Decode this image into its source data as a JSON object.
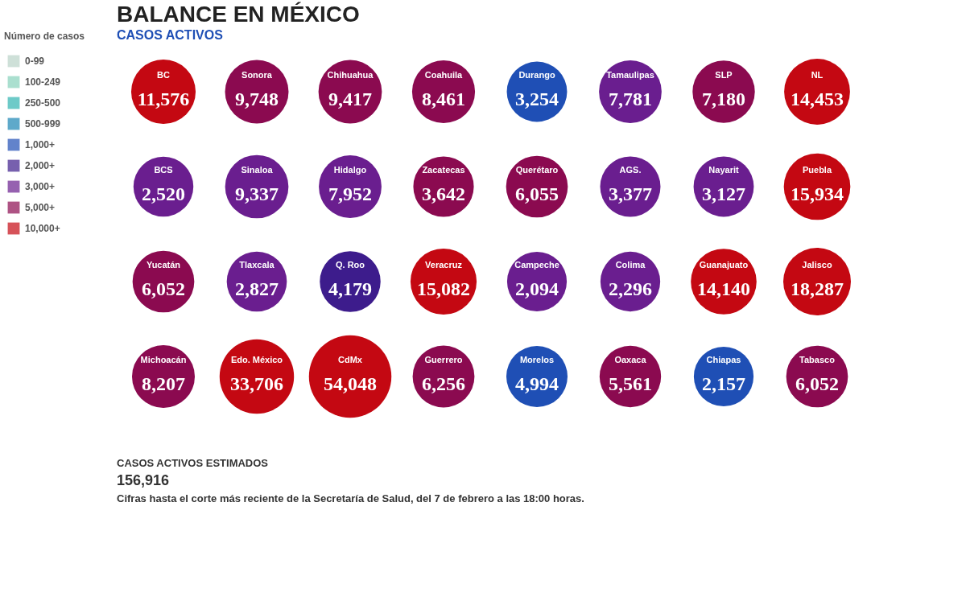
{
  "chart_data": [
    {
      "type": "other",
      "title": "Número de casos",
      "categories": [
        "0-99",
        "100-249",
        "250-500",
        "500-999",
        "1,000+",
        "2,000+",
        "3,000+",
        "5,000+",
        "10,000+"
      ],
      "colors": [
        "#b9d3c8",
        "#86d1bb",
        "#2fb3b1",
        "#1a84b3",
        "#1f4fb5",
        "#3d1c8c",
        "#6a1e8f",
        "#8b0a50",
        "#c40812"
      ]
    },
    {
      "type": "other",
      "title": "BALANCE EN MÉXICO",
      "subtitle": "CASOS ACTIVOS",
      "value_labels": [
        "11,576",
        "9,748",
        "9,417",
        "8,461",
        "3,254",
        "7,781",
        "7,180",
        "14,453",
        "2,520",
        "9,337",
        "7,952",
        "3,642",
        "6,055",
        "3,377",
        "3,127",
        "15,934",
        "6,052",
        "2,827",
        "4,179",
        "15,082",
        "2,094",
        "2,296",
        "14,140",
        "18,287",
        "8,207",
        "33,706",
        "54,048",
        "6,256",
        "4,994",
        "5,561",
        "2,157",
        "6,052"
      ],
      "categories": [
        "BC",
        "Sonora",
        "Chihuahua",
        "Coahuila",
        "Durango",
        "Tamaulipas",
        "SLP",
        "NL",
        "BCS",
        "Sinaloa",
        "Hidalgo",
        "Zacatecas",
        "Querétaro",
        "AGS.",
        "Nayarit",
        "Puebla",
        "Yucatán",
        "Tlaxcala",
        "Q. Roo",
        "Veracruz",
        "Campeche",
        "Colima",
        "Guanajuato",
        "Jalisco",
        "Michoacán",
        "Edo. México",
        "CdMx",
        "Guerrero",
        "Morelos",
        "Oaxaca",
        "Chiapas",
        "Tabasco"
      ],
      "values": [
        11576,
        9748,
        9417,
        8461,
        3254,
        7781,
        7180,
        14453,
        2520,
        9337,
        7952,
        3642,
        6055,
        3377,
        3127,
        15934,
        6052,
        2827,
        4179,
        15082,
        2094,
        2296,
        14140,
        18287,
        8207,
        33706,
        54048,
        6256,
        4994,
        5561,
        2157,
        6052
      ],
      "colors": [
        "#c40812",
        "#8b0a50",
        "#8b0a50",
        "#8b0a50",
        "#1f4fb5",
        "#6a1e8f",
        "#8b0a50",
        "#c40812",
        "#6a1e8f",
        "#6a1e8f",
        "#6a1e8f",
        "#8b0a50",
        "#8b0a50",
        "#6a1e8f",
        "#6a1e8f",
        "#c40812",
        "#8b0a50",
        "#6a1e8f",
        "#3d1c8c",
        "#c40812",
        "#6a1e8f",
        "#6a1e8f",
        "#c40812",
        "#c40812",
        "#8b0a50",
        "#c40812",
        "#c40812",
        "#8b0a50",
        "#1f4fb5",
        "#8b0a50",
        "#1f4fb5",
        "#8b0a50"
      ],
      "annotations": [
        "CASOS ACTIVOS ESTIMADOS",
        "156,916",
        "Cifras hasta el corte más reciente de la Secretaría de Salud, del 7 de febrero a las 18:00 horas."
      ]
    }
  ]
}
